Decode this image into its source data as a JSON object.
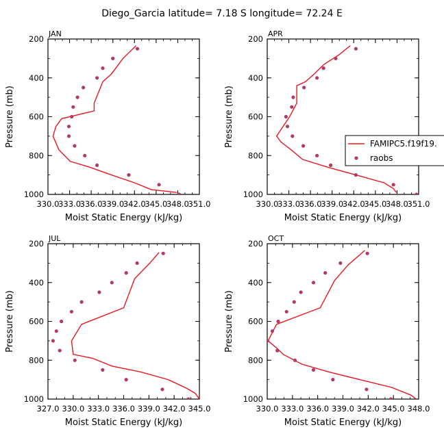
{
  "title": "Diego_Garcia   latitude= 7.18 S longitude= 72.24 E",
  "chart_data": [
    {
      "type": "line",
      "panel": "JAN",
      "xlabel": "Moist Static Energy (kJ/kg)",
      "ylabel": "Pressure (mb)",
      "xlim": [
        330.0,
        351.0
      ],
      "ylim": [
        1000,
        200
      ],
      "y_inverted": true,
      "xticks": [
        "330.0",
        "333.0",
        "336.0",
        "339.0",
        "342.0",
        "345.0",
        "348.0",
        "351.0"
      ],
      "yticks": [
        "200",
        "400",
        "600",
        "800",
        "1000"
      ],
      "series": [
        {
          "name": "FAMIPC5.f19f19.",
          "style": "line",
          "color": "#e8171f",
          "x": [
            347.9,
            344.3,
            342.0,
            338.8,
            335.8,
            333.1,
            331.5,
            330.7,
            331.1,
            331.9,
            336.4,
            336.4,
            337.6,
            338.8,
            340.4,
            342.2
          ],
          "y": [
            990,
            975,
            940,
            900,
            860,
            830,
            770,
            700,
            650,
            610,
            570,
            530,
            420,
            380,
            300,
            235
          ]
        },
        {
          "name": "raobs",
          "style": "markers",
          "color": "#b03a68",
          "x": [
            348.2,
            345.4,
            341.2,
            336.8,
            335.1,
            333.7,
            332.9,
            332.9,
            333.3,
            333.5,
            334.1,
            334.9,
            336.8,
            337.6,
            339.0,
            342.4
          ],
          "y": [
            1000,
            950,
            900,
            850,
            800,
            750,
            700,
            650,
            600,
            550,
            500,
            450,
            400,
            350,
            300,
            250
          ]
        }
      ]
    },
    {
      "type": "line",
      "panel": "APR",
      "xlabel": "Moist Static Energy (kJ/kg)",
      "ylabel": "Pressure (mb)",
      "xlim": [
        330.0,
        351.0
      ],
      "ylim": [
        1000,
        200
      ],
      "y_inverted": true,
      "xticks": [
        "330.0",
        "333.0",
        "336.0",
        "339.0",
        "342.0",
        "345.0",
        "348.0",
        "351.0"
      ],
      "yticks": [
        "200",
        "400",
        "600",
        "800",
        "1000"
      ],
      "series": [
        {
          "name": "FAMIPC5.f19f19.",
          "style": "line",
          "color": "#e8171f",
          "x": [
            347.9,
            347.5,
            346.2,
            342.3,
            338.4,
            334.9,
            333.3,
            331.9,
            331.3,
            333.1,
            334.1,
            334.1,
            335.3,
            336.5,
            337.9,
            340.0,
            341.5
          ],
          "y": [
            990,
            970,
            940,
            900,
            860,
            820,
            770,
            730,
            700,
            600,
            530,
            440,
            420,
            380,
            330,
            280,
            235
          ]
        },
        {
          "name": "raobs",
          "style": "markers",
          "color": "#b03a68",
          "x": [
            350.7,
            347.5,
            342.3,
            338.8,
            336.9,
            335.0,
            333.5,
            332.8,
            332.6,
            333.4,
            333.6,
            335.1,
            336.9,
            337.8,
            339.5,
            342.3
          ],
          "y": [
            1000,
            950,
            900,
            850,
            800,
            750,
            700,
            650,
            600,
            550,
            500,
            450,
            400,
            350,
            300,
            250
          ]
        }
      ]
    },
    {
      "type": "line",
      "panel": "JUL",
      "xlabel": "Moist Static Energy (kJ/kg)",
      "ylabel": "Pressure (mb)",
      "xlim": [
        327.0,
        345.0
      ],
      "ylim": [
        1000,
        200
      ],
      "y_inverted": true,
      "xticks": [
        "327.0",
        "330.0",
        "333.0",
        "336.0",
        "339.0",
        "342.0",
        "345.0"
      ],
      "yticks": [
        "200",
        "400",
        "600",
        "800",
        "1000"
      ],
      "series": [
        {
          "name": "FAMIPC5.f19f19.",
          "style": "line",
          "color": "#e8171f",
          "x": [
            345.0,
            344.5,
            343.5,
            341.3,
            338.0,
            334.6,
            332.3,
            330.0,
            329.8,
            331.0,
            336.0,
            337.3,
            339.1,
            340.2
          ],
          "y": [
            1000,
            970,
            945,
            900,
            860,
            830,
            790,
            770,
            700,
            615,
            530,
            380,
            300,
            245
          ]
        },
        {
          "name": "raobs",
          "style": "markers",
          "color": "#b03a68",
          "x": [
            343.7,
            340.6,
            336.3,
            333.5,
            330.2,
            328.4,
            327.6,
            328.0,
            328.6,
            329.8,
            331.0,
            333.1,
            334.6,
            336.3,
            337.6,
            340.7
          ],
          "y": [
            1000,
            950,
            900,
            850,
            800,
            750,
            700,
            650,
            600,
            550,
            500,
            450,
            400,
            350,
            300,
            250
          ]
        }
      ]
    },
    {
      "type": "line",
      "panel": "OCT",
      "xlabel": "Moist Static Energy (kJ/kg)",
      "ylabel": "Pressure (mb)",
      "xlim": [
        330.0,
        348.0
      ],
      "ylim": [
        1000,
        200
      ],
      "y_inverted": true,
      "xticks": [
        "330.0",
        "333.0",
        "336.0",
        "339.0",
        "342.0",
        "345.0",
        "348.0"
      ],
      "yticks": [
        "200",
        "400",
        "600",
        "800",
        "1000"
      ],
      "series": [
        {
          "name": "FAMIPC5.f19f19.",
          "style": "line",
          "color": "#e8171f",
          "x": [
            347.7,
            347.1,
            344.8,
            341.0,
            337.3,
            334.1,
            331.9,
            331.2,
            330.1,
            331.1,
            336.3,
            338.0,
            339.6,
            341.6
          ],
          "y": [
            1000,
            980,
            940,
            900,
            860,
            820,
            770,
            740,
            700,
            615,
            530,
            390,
            310,
            235
          ]
        },
        {
          "name": "raobs",
          "style": "markers",
          "color": "#b03a68",
          "x": [
            344.7,
            341.8,
            337.8,
            335.5,
            333.3,
            331.2,
            330.0,
            330.6,
            331.3,
            332.3,
            333.2,
            334.0,
            335.5,
            336.9,
            338.7,
            341.9
          ],
          "y": [
            1000,
            950,
            900,
            850,
            800,
            750,
            700,
            650,
            600,
            550,
            500,
            450,
            400,
            350,
            300,
            250
          ]
        }
      ]
    }
  ],
  "legend": {
    "items": [
      {
        "label": "FAMIPC5.f19f19.",
        "style": "line",
        "color": "#e8171f"
      },
      {
        "label": "raobs",
        "style": "markers",
        "color": "#b03a68"
      }
    ]
  }
}
